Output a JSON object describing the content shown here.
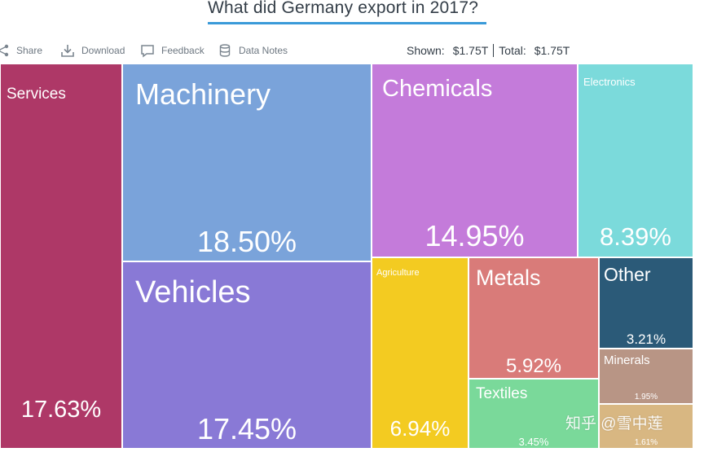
{
  "title": "What did Germany export in 2017?",
  "toolbar": {
    "share": "Share",
    "download": "Download",
    "feedback": "Feedback",
    "data_notes": "Data Notes",
    "shown_label": "Shown:",
    "shown_value": "$1.75T",
    "total_label": "Total:",
    "total_value": "$1.75T"
  },
  "watermark": "知乎 @雪中莲",
  "chart_data": {
    "type": "treemap",
    "title": "What did Germany export in 2017?",
    "total": "$1.75T",
    "items": [
      {
        "name": "Services",
        "value": 17.63,
        "label": "17.63%",
        "color": "#ae3867"
      },
      {
        "name": "Machinery",
        "value": 18.5,
        "label": "18.50%",
        "color": "#7aa3da"
      },
      {
        "name": "Vehicles",
        "value": 17.45,
        "label": "17.45%",
        "color": "#8979d6"
      },
      {
        "name": "Chemicals",
        "value": 14.95,
        "label": "14.95%",
        "color": "#c47bda"
      },
      {
        "name": "Electronics",
        "value": 8.39,
        "label": "8.39%",
        "color": "#7bdadb"
      },
      {
        "name": "Agriculture",
        "value": 6.94,
        "label": "6.94%",
        "color": "#f3cb21"
      },
      {
        "name": "Metals",
        "value": 5.92,
        "label": "5.92%",
        "color": "#d97b79"
      },
      {
        "name": "Textiles",
        "value": 3.45,
        "label": "3.45%",
        "color": "#7ad99a"
      },
      {
        "name": "Other",
        "value": 3.21,
        "label": "3.21%",
        "color": "#2b5a78"
      },
      {
        "name": "Minerals",
        "value": 1.95,
        "label": "1.95%",
        "color": "#b89585"
      },
      {
        "name": "",
        "value": 1.61,
        "label": "1.61%",
        "color": "#d8b782"
      }
    ]
  }
}
